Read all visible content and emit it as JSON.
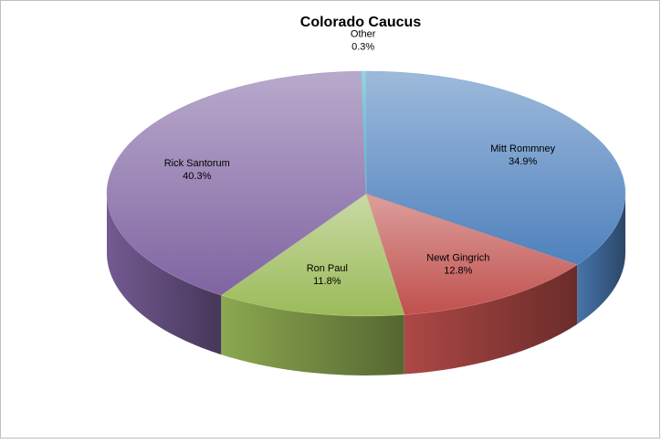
{
  "chart_data": {
    "type": "pie3d",
    "title": "Colorado Caucus",
    "categories": [
      "Mitt Rommney",
      "Newt Gingrich",
      "Ron Paul",
      "Rick Santorum",
      "Other"
    ],
    "values": [
      34.9,
      12.8,
      11.8,
      40.3,
      0.3
    ],
    "value_labels": [
      "34.9%",
      "12.8%",
      "11.8%",
      "40.3%",
      "0.3%"
    ],
    "colors": [
      "#4f81bd",
      "#c0504d",
      "#9bbb59",
      "#8064a2",
      "#4bacc6"
    ]
  }
}
